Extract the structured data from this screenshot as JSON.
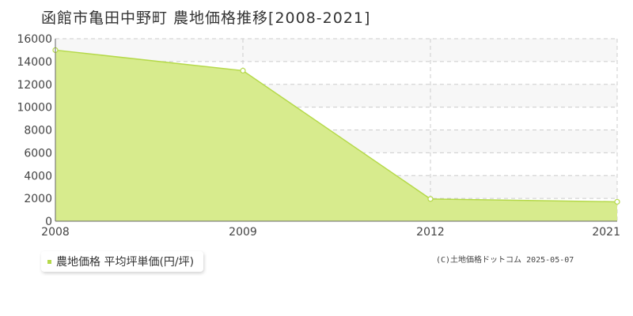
{
  "title": "函館市亀田中野町 農地価格推移[2008-2021]",
  "legend": {
    "label": "農地価格 平均坪単価(円/坪)"
  },
  "copyright": "(C)土地価格ドットコム 2025-05-07",
  "colors": {
    "area_fill": "#d7eb8d",
    "line": "#b5d94a",
    "marker_fill": "#ffffff",
    "grid": "#cccccc",
    "band": "#f7f7f7"
  },
  "chart_data": {
    "type": "area",
    "title": "函館市亀田中野町 農地価格推移[2008-2021]",
    "x": [
      2008,
      2009,
      2012,
      2021
    ],
    "series": [
      {
        "name": "農地価格 平均坪単価(円/坪)",
        "values": [
          15000,
          13200,
          1950,
          1700
        ]
      }
    ],
    "x_ticks": [
      "2008",
      "2009",
      "2012",
      "2021"
    ],
    "y_ticks": [
      0,
      2000,
      4000,
      6000,
      8000,
      10000,
      12000,
      14000,
      16000
    ],
    "ylim": [
      0,
      16000
    ],
    "x_scale": "category",
    "grid": true,
    "legend_position": "bottom-left"
  }
}
